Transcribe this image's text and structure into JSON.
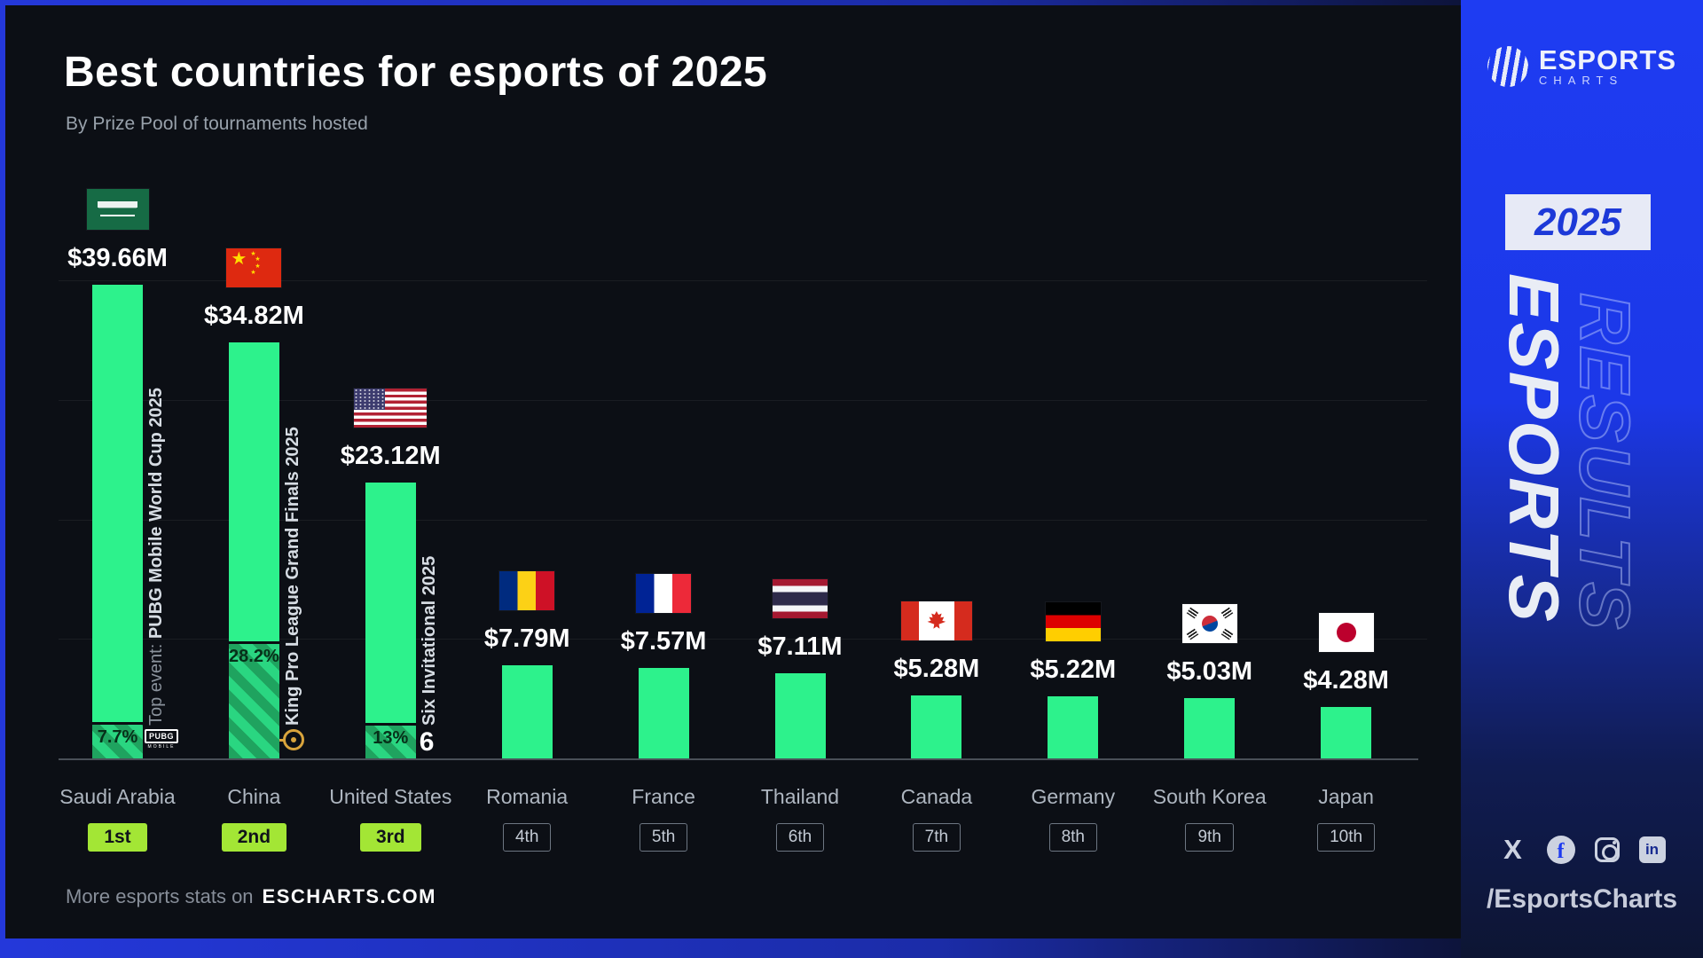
{
  "header": {
    "title": "Best countries for esports of 2025",
    "subtitle": "By Prize Pool of tournaments hosted"
  },
  "footer": {
    "prefix": "More esports stats on",
    "brand": "ESCHARTS.COM"
  },
  "sidebar": {
    "logo_line1": "ESPORTS",
    "logo_line2": "CHARTS",
    "year_badge": "2025",
    "vertical_front": "ESPORTS",
    "vertical_back": "RESULTS",
    "social_icons": [
      "x",
      "facebook",
      "instagram",
      "linkedin"
    ],
    "handle": "/EsportsCharts"
  },
  "chart_data": {
    "type": "bar",
    "title": "Best countries for esports of 2025",
    "subtitle": "By Prize Pool of tournaments hosted",
    "unit": "USD millions (prize pool of tournaments hosted)",
    "ylim": [
      0,
      42
    ],
    "gridline_interval": 10,
    "legend": "none",
    "bars": [
      {
        "country": "Saudi Arabia",
        "rank": "1st",
        "rank_style": "filled",
        "value": 39.66,
        "label": "$39.66M",
        "flag": "sa",
        "event_prefix": "Top event: ",
        "top_event": "PUBG Mobile World Cup 2025",
        "top_event_share_pct": 7.7,
        "share_label": "7.7%",
        "event_icon": "pubg-mobile"
      },
      {
        "country": "China",
        "rank": "2nd",
        "rank_style": "filled",
        "value": 34.82,
        "label": "$34.82M",
        "flag": "cn",
        "event_prefix": "",
        "top_event": "King Pro League Grand Finals 2025",
        "top_event_share_pct": 28.2,
        "share_label": "28.2%",
        "event_icon": "king-pro-league"
      },
      {
        "country": "United States",
        "rank": "3rd",
        "rank_style": "filled",
        "value": 23.12,
        "label": "$23.12M",
        "flag": "us",
        "event_prefix": "",
        "top_event": "Six Invitational 2025",
        "top_event_share_pct": 13,
        "share_label": "13%",
        "event_icon": "six-invitational"
      },
      {
        "country": "Romania",
        "rank": "4th",
        "rank_style": "outline",
        "value": 7.79,
        "label": "$7.79M",
        "flag": "ro"
      },
      {
        "country": "France",
        "rank": "5th",
        "rank_style": "outline",
        "value": 7.57,
        "label": "$7.57M",
        "flag": "fr"
      },
      {
        "country": "Thailand",
        "rank": "6th",
        "rank_style": "outline",
        "value": 7.11,
        "label": "$7.11M",
        "flag": "th"
      },
      {
        "country": "Canada",
        "rank": "7th",
        "rank_style": "outline",
        "value": 5.28,
        "label": "$5.28M",
        "flag": "ca"
      },
      {
        "country": "Germany",
        "rank": "8th",
        "rank_style": "outline",
        "value": 5.22,
        "label": "$5.22M",
        "flag": "de"
      },
      {
        "country": "South Korea",
        "rank": "9th",
        "rank_style": "outline",
        "value": 5.03,
        "label": "$5.03M",
        "flag": "kr"
      },
      {
        "country": "Japan",
        "rank": "10th",
        "rank_style": "outline",
        "value": 4.28,
        "label": "$4.28M",
        "flag": "jp"
      }
    ]
  },
  "theme": {
    "bar_green": "#2DF28C",
    "hatch_green": "#1FA35F",
    "rank_badge_green": "#A3E635",
    "sidebar_blue": "#1E3CF2",
    "background_dark": "#0C0F15",
    "frame_blue": "#2438DA",
    "kpl_gold": "#D9A43C"
  }
}
